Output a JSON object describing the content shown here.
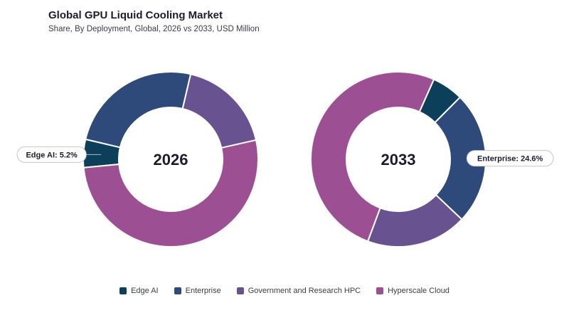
{
  "header": {
    "title": "Global GPU Liquid Cooling Market",
    "subtitle": "Share, By Deployment, Global, 2026 vs 2033, USD Million"
  },
  "chart_data": {
    "type": "pie",
    "donut": true,
    "categories": [
      "Edge AI",
      "Enterprise",
      "Government and Research HPC",
      "Hyperscale Cloud"
    ],
    "colors": [
      "#0b3f5a",
      "#2e4a7a",
      "#68528f",
      "#9d4f93"
    ],
    "charts": [
      {
        "center_label": "2026",
        "values": [
          5.2,
          25.0,
          17.8,
          52.0
        ],
        "callout": {
          "category": "Edge AI",
          "text": "Edge AI: 5.2%"
        }
      },
      {
        "center_label": "2033",
        "values": [
          5.8,
          24.6,
          18.6,
          51.0
        ],
        "callout": {
          "category": "Enterprise",
          "text": "Enterprise: 24.6%"
        }
      }
    ],
    "legend_position": "bottom"
  }
}
